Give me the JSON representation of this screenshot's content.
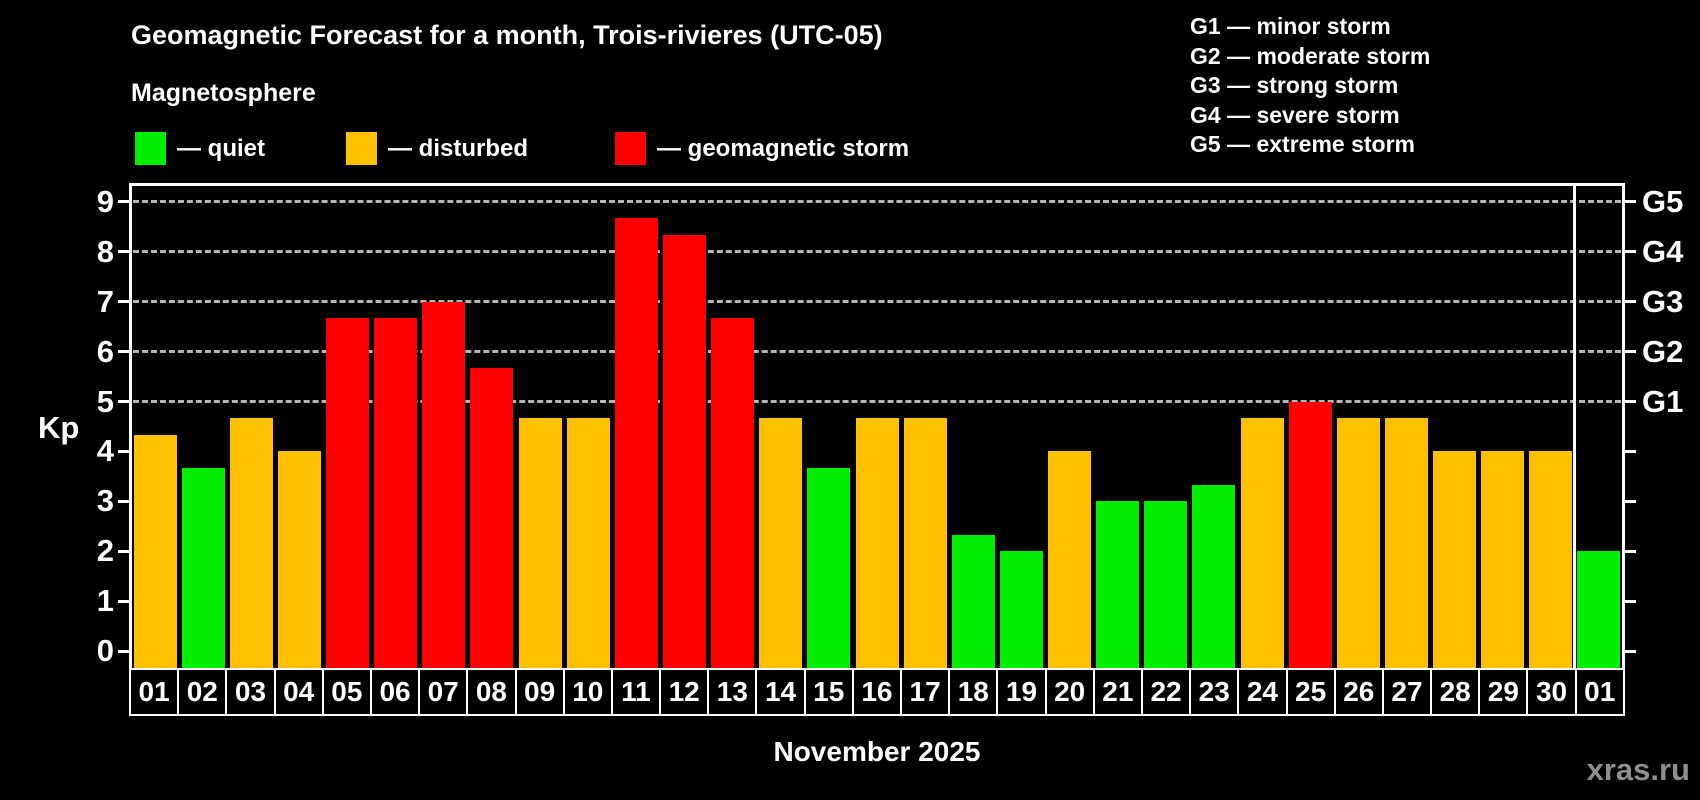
{
  "page": {
    "background": "#000000",
    "watermark": "xras.ru"
  },
  "header": {
    "title": "Geomagnetic Forecast for a month, Trois-rivieres (UTC-05)",
    "subtitle": "Magnetosphere"
  },
  "legend": {
    "items": [
      {
        "key": "quiet",
        "label": "— quiet",
        "color": "#00ee00"
      },
      {
        "key": "disturbed",
        "label": "— disturbed",
        "color": "#ffc000"
      },
      {
        "key": "storm",
        "label": "— geomagnetic storm",
        "color": "#ff0000"
      }
    ]
  },
  "g_legend": {
    "items": [
      "G1 — minor storm",
      "G2 — moderate storm",
      "G3 — strong storm",
      "G4 — severe storm",
      "G5 — extreme storm"
    ]
  },
  "chart_data": {
    "type": "bar",
    "title": "Geomagnetic Forecast for a month, Trois-rivieres (UTC-05)",
    "ylabel": "Kp",
    "xlabel": "November 2025",
    "ylim": [
      0,
      9
    ],
    "y_ticks": [
      0,
      1,
      2,
      3,
      4,
      5,
      6,
      7,
      8,
      9
    ],
    "gridlines_at": [
      5,
      6,
      7,
      8,
      9
    ],
    "grid": true,
    "legend_position": "top-left",
    "right_axis": [
      {
        "kp": 5,
        "label": "G1"
      },
      {
        "kp": 6,
        "label": "G2"
      },
      {
        "kp": 7,
        "label": "G3"
      },
      {
        "kp": 8,
        "label": "G4"
      },
      {
        "kp": 9,
        "label": "G5"
      }
    ],
    "month_separator_after_index": 29,
    "status_colors": {
      "quiet": "#00ee00",
      "disturbed": "#ffc000",
      "storm": "#ff0000"
    },
    "bars": [
      {
        "day": "01",
        "kp": 4.33,
        "status": "disturbed"
      },
      {
        "day": "02",
        "kp": 3.67,
        "status": "quiet"
      },
      {
        "day": "03",
        "kp": 4.67,
        "status": "disturbed"
      },
      {
        "day": "04",
        "kp": 4.0,
        "status": "disturbed"
      },
      {
        "day": "05",
        "kp": 6.67,
        "status": "storm"
      },
      {
        "day": "06",
        "kp": 6.67,
        "status": "storm"
      },
      {
        "day": "07",
        "kp": 7.0,
        "status": "storm"
      },
      {
        "day": "08",
        "kp": 5.67,
        "status": "storm"
      },
      {
        "day": "09",
        "kp": 4.67,
        "status": "disturbed"
      },
      {
        "day": "10",
        "kp": 4.67,
        "status": "disturbed"
      },
      {
        "day": "11",
        "kp": 8.67,
        "status": "storm"
      },
      {
        "day": "12",
        "kp": 8.33,
        "status": "storm"
      },
      {
        "day": "13",
        "kp": 6.67,
        "status": "storm"
      },
      {
        "day": "14",
        "kp": 4.67,
        "status": "disturbed"
      },
      {
        "day": "15",
        "kp": 3.67,
        "status": "quiet"
      },
      {
        "day": "16",
        "kp": 4.67,
        "status": "disturbed"
      },
      {
        "day": "17",
        "kp": 4.67,
        "status": "disturbed"
      },
      {
        "day": "18",
        "kp": 2.33,
        "status": "quiet"
      },
      {
        "day": "19",
        "kp": 2.0,
        "status": "quiet"
      },
      {
        "day": "20",
        "kp": 4.0,
        "status": "disturbed"
      },
      {
        "day": "21",
        "kp": 3.0,
        "status": "quiet"
      },
      {
        "day": "22",
        "kp": 3.0,
        "status": "quiet"
      },
      {
        "day": "23",
        "kp": 3.33,
        "status": "quiet"
      },
      {
        "day": "24",
        "kp": 4.67,
        "status": "disturbed"
      },
      {
        "day": "25",
        "kp": 5.0,
        "status": "storm"
      },
      {
        "day": "26",
        "kp": 4.67,
        "status": "disturbed"
      },
      {
        "day": "27",
        "kp": 4.67,
        "status": "disturbed"
      },
      {
        "day": "28",
        "kp": 4.0,
        "status": "disturbed"
      },
      {
        "day": "29",
        "kp": 4.0,
        "status": "disturbed"
      },
      {
        "day": "30",
        "kp": 4.0,
        "status": "disturbed"
      },
      {
        "day": "01",
        "kp": 2.0,
        "status": "quiet"
      }
    ]
  }
}
